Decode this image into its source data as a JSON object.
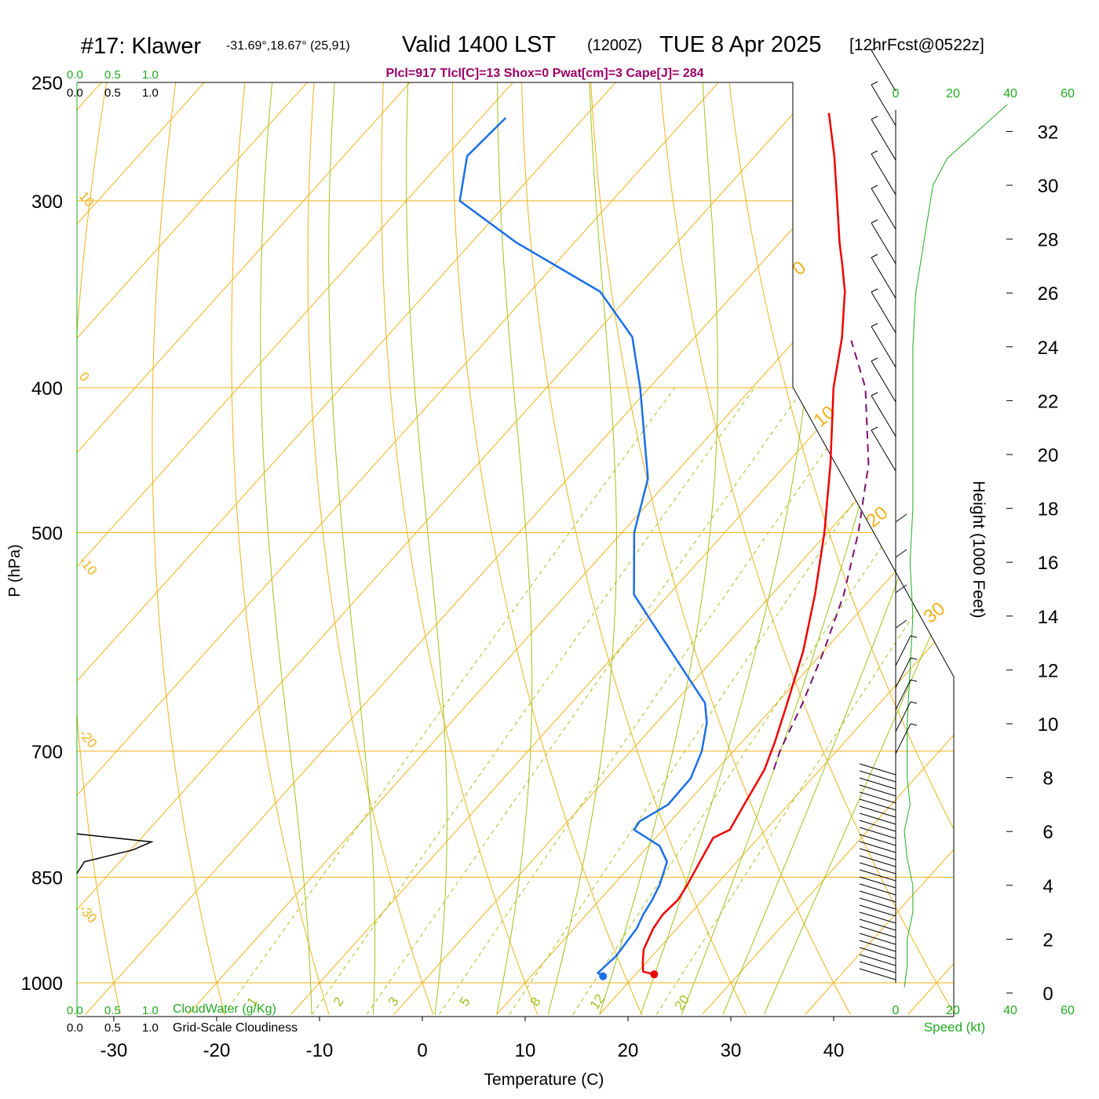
{
  "header": {
    "station": "#17: Klawer",
    "coords": "-31.69°,18.67° (25,91)",
    "valid": "Valid 1400 LST",
    "utc": "(1200Z)",
    "date": "TUE 8 Apr 2025",
    "forecast": "[12hrFcst@0522z]",
    "indices": "Plcl=917 Tlcl[C]=13 Shox=0 Pwat[cm]=3 Cape[J]= 284"
  },
  "colors": {
    "temperature": "#ee0000",
    "dewpoint": "#1a6fe6",
    "parcel": "#7a0f6e",
    "isotherm": "#f0b21a",
    "dry_adiabat": "#f0b21a",
    "moist_adiabat": "#9ec21c",
    "mixing_ratio": "#9ec21c",
    "green_label": "#22aa22",
    "indices_text": "#990066"
  },
  "left_scale": {
    "top_green": [
      "0.0",
      "0.5",
      "1.0"
    ],
    "top_black": [
      "0.0",
      "0.5",
      "1.0"
    ],
    "bottom_green": [
      "0.0",
      "0.5",
      "1.0"
    ],
    "bottom_black": [
      "0.0",
      "0.5",
      "1.0"
    ],
    "cloudwater_label": "CloudWater (g/Kg)",
    "cloudiness_label": "Grid-Scale Cloudiness"
  },
  "wind_scale": {
    "top_ticks": [
      "0",
      "20",
      "40",
      "60"
    ],
    "bottom_ticks": [
      "0",
      "20",
      "40",
      "60"
    ],
    "label": "Speed (kt)"
  },
  "chart_data": {
    "type": "skew-t log-p sounding",
    "ylabel": "P (hPa)",
    "xlabel": "Temperature (C)",
    "right_label": "Height (1000 Feet)",
    "pressure_ticks": [
      "250",
      "300",
      "400",
      "500",
      "700",
      "850",
      "1000"
    ],
    "temperature_ticks": [
      "-30",
      "-20",
      "-10",
      "0",
      "10",
      "20",
      "30",
      "40"
    ],
    "height_ticks": [
      "0",
      "2",
      "4",
      "6",
      "8",
      "10",
      "12",
      "14",
      "16",
      "18",
      "20",
      "22",
      "24",
      "26",
      "28",
      "30",
      "32"
    ],
    "dry_adiabat_labels": [
      "10",
      "0",
      "-10",
      "-20",
      "-30",
      "0",
      "10",
      "20",
      "30"
    ],
    "mixing_ratio_labels": [
      "1",
      "2",
      "3",
      "5",
      "8",
      "12",
      "20"
    ],
    "temperature_profile": [
      {
        "p": 987,
        "t": 21.8
      },
      {
        "p": 983,
        "t": 20.5
      },
      {
        "p": 970,
        "t": 19.7
      },
      {
        "p": 950,
        "t": 18.6
      },
      {
        "p": 920,
        "t": 17.7
      },
      {
        "p": 900,
        "t": 17.4
      },
      {
        "p": 880,
        "t": 17.6
      },
      {
        "p": 860,
        "t": 17.2
      },
      {
        "p": 830,
        "t": 16.4
      },
      {
        "p": 800,
        "t": 15.6
      },
      {
        "p": 790,
        "t": 16.5
      },
      {
        "p": 760,
        "t": 15.7
      },
      {
        "p": 720,
        "t": 14.6
      },
      {
        "p": 690,
        "t": 13.2
      },
      {
        "p": 650,
        "t": 11.0
      },
      {
        "p": 600,
        "t": 8.0
      },
      {
        "p": 550,
        "t": 4.2
      },
      {
        "p": 500,
        "t": -0.3
      },
      {
        "p": 450,
        "t": -5.7
      },
      {
        "p": 400,
        "t": -12.1
      },
      {
        "p": 370,
        "t": -15.7
      },
      {
        "p": 355,
        "t": -17.9
      },
      {
        "p": 345,
        "t": -19.4
      },
      {
        "p": 330,
        "t": -22.2
      },
      {
        "p": 320,
        "t": -24.2
      },
      {
        "p": 300,
        "t": -28.1
      },
      {
        "p": 280,
        "t": -32.3
      },
      {
        "p": 262,
        "t": -36.6
      }
    ],
    "dewpoint_profile": [
      {
        "p": 990,
        "t": 17.0
      },
      {
        "p": 985,
        "t": 16.2
      },
      {
        "p": 960,
        "t": 16.5
      },
      {
        "p": 920,
        "t": 16.1
      },
      {
        "p": 900,
        "t": 15.5
      },
      {
        "p": 880,
        "t": 15.1
      },
      {
        "p": 860,
        "t": 14.5
      },
      {
        "p": 830,
        "t": 13.2
      },
      {
        "p": 810,
        "t": 11.1
      },
      {
        "p": 790,
        "t": 7.2
      },
      {
        "p": 780,
        "t": 7.0
      },
      {
        "p": 760,
        "t": 8.3
      },
      {
        "p": 730,
        "t": 8.2
      },
      {
        "p": 700,
        "t": 6.9
      },
      {
        "p": 670,
        "t": 4.9
      },
      {
        "p": 650,
        "t": 3.0
      },
      {
        "p": 580,
        "t": -8.2
      },
      {
        "p": 550,
        "t": -13.4
      },
      {
        "p": 500,
        "t": -18.8
      },
      {
        "p": 460,
        "t": -22.2
      },
      {
        "p": 400,
        "t": -30.9
      },
      {
        "p": 370,
        "t": -36.1
      },
      {
        "p": 345,
        "t": -43.2
      },
      {
        "p": 320,
        "t": -55.6
      },
      {
        "p": 300,
        "t": -64.8
      },
      {
        "p": 280,
        "t": -68.0
      },
      {
        "p": 264,
        "t": -67.6
      }
    ],
    "parcel_profile": [
      {
        "p": 720,
        "t": 15.5
      },
      {
        "p": 700,
        "t": 14.5
      },
      {
        "p": 650,
        "t": 12.5
      },
      {
        "p": 600,
        "t": 10.0
      },
      {
        "p": 550,
        "t": 7.0
      },
      {
        "p": 500,
        "t": 3.0
      },
      {
        "p": 450,
        "t": -2.0
      },
      {
        "p": 400,
        "t": -9.0
      },
      {
        "p": 372,
        "t": -14.5
      }
    ],
    "surface_temperature": {
      "p": 987,
      "t": 21.8
    },
    "surface_dewpoint": {
      "p": 990,
      "t": 17.0
    },
    "cloudiness_profile": [
      {
        "p": 795,
        "c": 0.0
      },
      {
        "p": 805,
        "c": 1.0
      },
      {
        "p": 815,
        "c": 0.75
      },
      {
        "p": 830,
        "c": 0.1
      },
      {
        "p": 845,
        "c": 0.0
      }
    ],
    "wind_speed_profile": [
      {
        "h": 0.2,
        "s": 3
      },
      {
        "h": 1.0,
        "s": 4
      },
      {
        "h": 2.0,
        "s": 4
      },
      {
        "h": 3.0,
        "s": 6
      },
      {
        "h": 4.0,
        "s": 6
      },
      {
        "h": 5.0,
        "s": 4
      },
      {
        "h": 6.0,
        "s": 3
      },
      {
        "h": 7.0,
        "s": 5
      },
      {
        "h": 8.0,
        "s": 4
      },
      {
        "h": 10.0,
        "s": 4
      },
      {
        "h": 12.0,
        "s": 5
      },
      {
        "h": 14.0,
        "s": 6
      },
      {
        "h": 16.0,
        "s": 5
      },
      {
        "h": 18.0,
        "s": 6
      },
      {
        "h": 20.0,
        "s": 6
      },
      {
        "h": 22.0,
        "s": 6
      },
      {
        "h": 24.0,
        "s": 6
      },
      {
        "h": 26.0,
        "s": 7
      },
      {
        "h": 28.0,
        "s": 10
      },
      {
        "h": 30.0,
        "s": 13
      },
      {
        "h": 31.0,
        "s": 18
      },
      {
        "h": 33.0,
        "s": 39
      }
    ]
  }
}
